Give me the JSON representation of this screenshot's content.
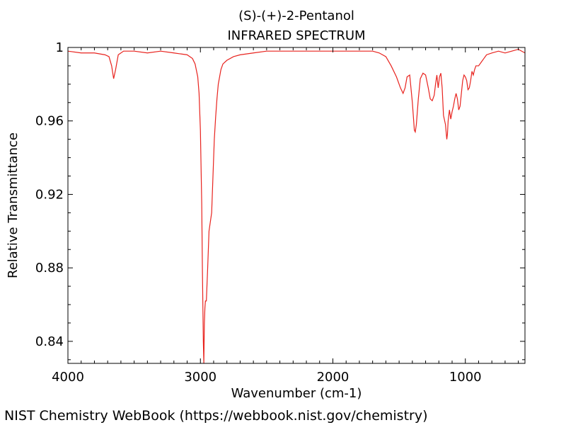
{
  "chart_data": {
    "type": "line",
    "title": "(S)-(+)-2-Pentanol",
    "subtitle": "INFRARED SPECTRUM",
    "xlabel": "Wavenumber (cm-1)",
    "ylabel": "Relative Transmittance",
    "xlim": [
      4000,
      550
    ],
    "ylim": [
      0.828,
      1.0
    ],
    "xticks": [
      4000,
      3000,
      2000,
      1000
    ],
    "xtick_labels": [
      "4000",
      "3000",
      "2000",
      "1000"
    ],
    "yticks": [
      0.84,
      0.88,
      0.92,
      0.96,
      1.0
    ],
    "ytick_labels": [
      "0.84",
      "0.88",
      "0.92",
      "0.96",
      "1"
    ],
    "grid": false,
    "series": [
      {
        "name": "(S)-(+)-2-Pentanol",
        "color": "#e8231e",
        "x": [
          4000,
          3900,
          3800,
          3720,
          3690,
          3670,
          3655,
          3640,
          3620,
          3580,
          3500,
          3400,
          3300,
          3200,
          3100,
          3060,
          3040,
          3020,
          3010,
          3000,
          2990,
          2985,
          2978,
          2974,
          2970,
          2966,
          2962,
          2955,
          2945,
          2935,
          2925,
          2915,
          2905,
          2895,
          2885,
          2875,
          2865,
          2855,
          2845,
          2830,
          2800,
          2750,
          2700,
          2600,
          2500,
          2400,
          2300,
          2200,
          2100,
          2000,
          1900,
          1800,
          1700,
          1650,
          1600,
          1560,
          1520,
          1490,
          1470,
          1455,
          1440,
          1420,
          1400,
          1385,
          1378,
          1370,
          1355,
          1340,
          1320,
          1300,
          1280,
          1265,
          1250,
          1235,
          1225,
          1215,
          1205,
          1195,
          1185,
          1175,
          1165,
          1150,
          1140,
          1135,
          1130,
          1120,
          1110,
          1100,
          1090,
          1080,
          1070,
          1060,
          1050,
          1040,
          1030,
          1020,
          1010,
          1000,
          990,
          980,
          970,
          960,
          950,
          940,
          930,
          920,
          900,
          880,
          860,
          840,
          800,
          750,
          700,
          650,
          600,
          550
        ],
        "y": [
          0.998,
          0.997,
          0.997,
          0.996,
          0.995,
          0.99,
          0.983,
          0.988,
          0.996,
          0.998,
          0.998,
          0.997,
          0.998,
          0.997,
          0.996,
          0.994,
          0.991,
          0.984,
          0.975,
          0.955,
          0.915,
          0.88,
          0.84,
          0.828,
          0.85,
          0.858,
          0.862,
          0.862,
          0.88,
          0.9,
          0.905,
          0.91,
          0.93,
          0.95,
          0.962,
          0.972,
          0.98,
          0.984,
          0.988,
          0.991,
          0.993,
          0.995,
          0.996,
          0.997,
          0.998,
          0.998,
          0.998,
          0.998,
          0.998,
          0.998,
          0.998,
          0.998,
          0.998,
          0.997,
          0.995,
          0.99,
          0.984,
          0.978,
          0.975,
          0.978,
          0.984,
          0.985,
          0.97,
          0.955,
          0.954,
          0.958,
          0.972,
          0.983,
          0.986,
          0.985,
          0.978,
          0.972,
          0.971,
          0.974,
          0.98,
          0.985,
          0.978,
          0.984,
          0.986,
          0.978,
          0.963,
          0.958,
          0.95,
          0.953,
          0.96,
          0.966,
          0.961,
          0.965,
          0.968,
          0.972,
          0.975,
          0.972,
          0.966,
          0.968,
          0.975,
          0.982,
          0.985,
          0.984,
          0.982,
          0.977,
          0.978,
          0.982,
          0.987,
          0.985,
          0.988,
          0.99,
          0.99,
          0.992,
          0.994,
          0.996,
          0.997,
          0.998,
          0.997,
          0.998,
          0.999,
          0.997
        ]
      }
    ]
  },
  "footer": "NIST Chemistry WebBook (https://webbook.nist.gov/chemistry)"
}
